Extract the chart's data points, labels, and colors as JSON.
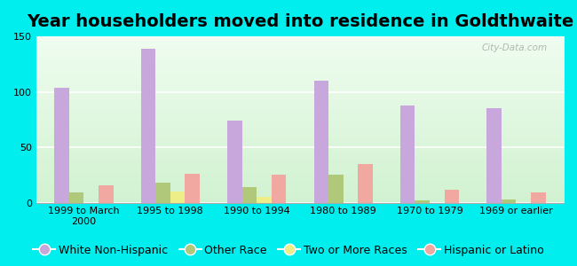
{
  "title": "Year householders moved into residence in Goldthwaite",
  "categories": [
    "1999 to March\n2000",
    "1995 to 1998",
    "1990 to 1994",
    "1980 to 1989",
    "1970 to 1979",
    "1969 or earlier"
  ],
  "series": {
    "White Non-Hispanic": [
      104,
      139,
      74,
      110,
      88,
      85
    ],
    "Other Race": [
      9,
      18,
      14,
      25,
      2,
      3
    ],
    "Two or More Races": [
      0,
      10,
      5,
      0,
      0,
      0
    ],
    "Hispanic or Latino": [
      16,
      26,
      25,
      35,
      12,
      9
    ]
  },
  "colors": {
    "White Non-Hispanic": "#c8a8dc",
    "Other Race": "#b0c87a",
    "Two or More Races": "#eeee88",
    "Hispanic or Latino": "#f0a8a0"
  },
  "ylim": [
    0,
    150
  ],
  "yticks": [
    0,
    50,
    100,
    150
  ],
  "background_color": "#00eeee",
  "plot_bg_top": "#f0f8f0",
  "plot_bg_bottom": "#d8f0d8",
  "watermark": "City-Data.com",
  "title_fontsize": 14,
  "tick_fontsize": 8,
  "legend_fontsize": 9,
  "bar_width": 0.17
}
